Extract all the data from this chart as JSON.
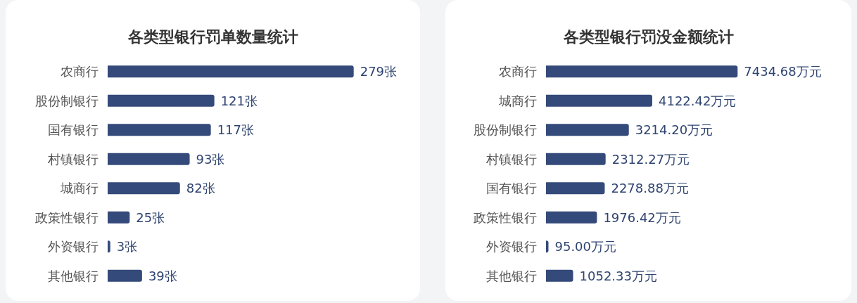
{
  "chart_data": [
    {
      "type": "bar",
      "orientation": "horizontal",
      "title": "各类型银行罚单数量统计",
      "categories": [
        "农商行",
        "股份制银行",
        "国有银行",
        "村镇银行",
        "城商行",
        "政策性银行",
        "外资银行",
        "其他银行"
      ],
      "values": [
        279,
        121,
        117,
        93,
        82,
        25,
        3,
        39
      ],
      "value_labels": [
        "279张",
        "121张",
        "117张",
        "93张",
        "82张",
        "25张",
        "3张",
        "39张"
      ],
      "color": "#344a7a"
    },
    {
      "type": "bar",
      "orientation": "horizontal",
      "title": "各类型银行罚没金额统计",
      "categories": [
        "农商行",
        "城商行",
        "股份制银行",
        "村镇银行",
        "国有银行",
        "政策性银行",
        "外资银行",
        "其他银行"
      ],
      "values": [
        7434.68,
        4122.42,
        3214.2,
        2312.27,
        2278.88,
        1976.42,
        95.0,
        1052.33
      ],
      "value_labels": [
        "7434.68万元",
        "4122.42万元",
        "3214.20万元",
        "2312.27万元",
        "2278.88万元",
        "1976.42万元",
        "95.00万元",
        "1052.33万元"
      ],
      "color": "#344a7a"
    }
  ]
}
